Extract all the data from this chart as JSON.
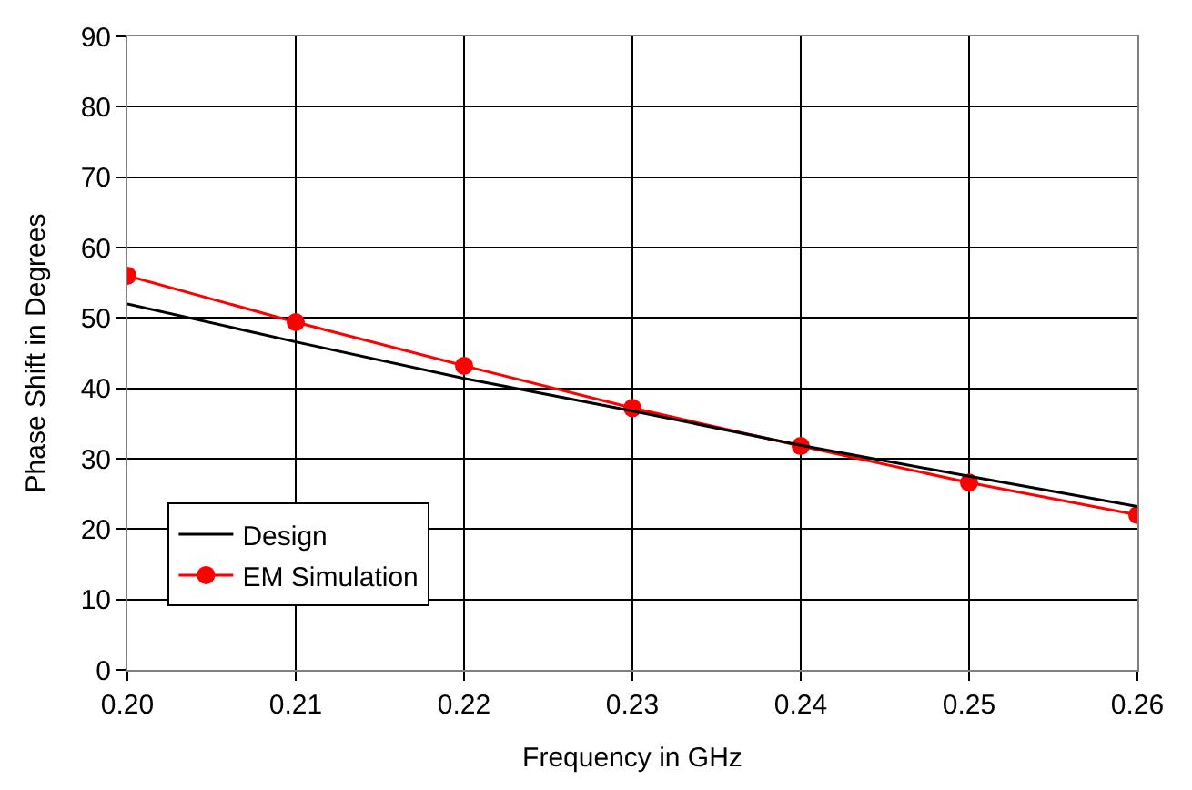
{
  "chart_data": {
    "type": "line",
    "xlabel": "Frequency in GHz",
    "ylabel": "Phase Shift in Degrees",
    "x": [
      0.2,
      0.21,
      0.22,
      0.23,
      0.24,
      0.25,
      0.26
    ],
    "series": [
      {
        "name": "Design",
        "color": "#000000",
        "marker": "none",
        "values": [
          52,
          46.6,
          41.4,
          36.8,
          31.9,
          27.5,
          23.2
        ]
      },
      {
        "name": "EM Simulation",
        "color": "#ff0000",
        "marker": "circle",
        "values": [
          56,
          49.4,
          43.2,
          37.2,
          31.8,
          26.6,
          22
        ]
      }
    ],
    "xlim": [
      0.2,
      0.26
    ],
    "xticks": [
      {
        "value": 0.2,
        "label": "0.20"
      },
      0.21,
      0.22,
      0.23,
      0.24,
      0.25,
      0.26
    ],
    "ylim": [
      0,
      90
    ],
    "yticks": [
      0,
      10,
      20,
      30,
      40,
      50,
      60,
      70,
      80,
      90
    ],
    "grid": true,
    "legend": "bottom left",
    "line_style": "solid"
  }
}
